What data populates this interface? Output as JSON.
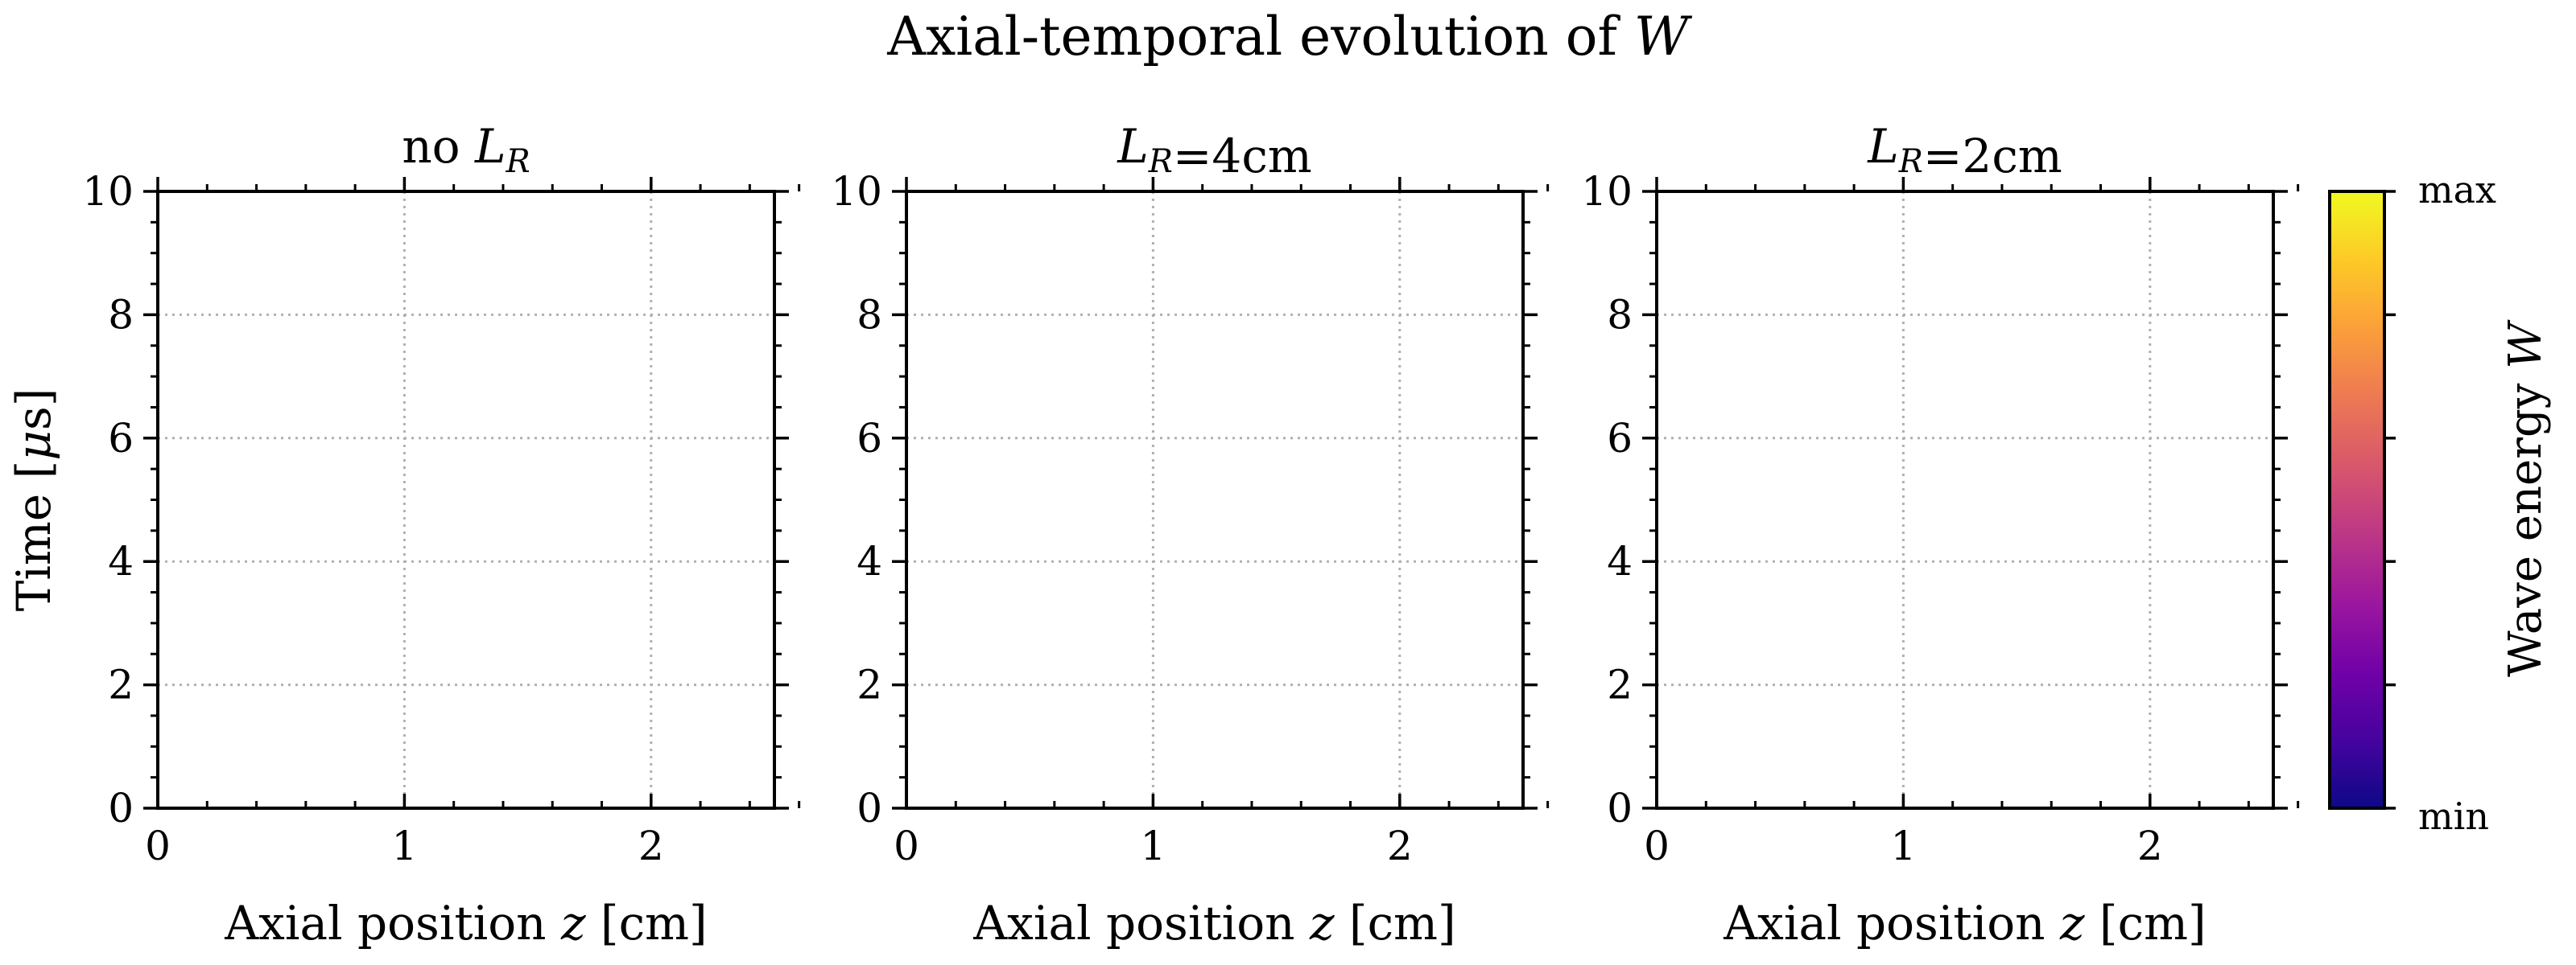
{
  "chart_data": {
    "type": "heatmap",
    "title": "Axial-temporal evolution of ",
    "title_symbol": "W",
    "colormap": "plasma",
    "panels": [
      {
        "title_parts": [
          {
            "text": "no ",
            "italic": false
          },
          {
            "text": "L",
            "italic": true,
            "sub": "R"
          }
        ],
        "title_text": "no L_R",
        "xlabel_prefix": "Axial position ",
        "xlabel_symbol": "z",
        "xlabel_suffix": " [cm]",
        "ylabel_prefix": "Time [",
        "ylabel_symbol": "μ",
        "ylabel_suffix": "s]",
        "xlim": [
          0,
          2.5
        ],
        "ylim": [
          0,
          10
        ],
        "xticks": [
          0,
          1,
          2
        ],
        "yticks": [
          0,
          2,
          4,
          6,
          8,
          10
        ],
        "grid": true,
        "z": []
      },
      {
        "title_parts": [
          {
            "text": "L",
            "italic": true,
            "sub": "R"
          },
          {
            "text": "=4cm",
            "italic": false
          }
        ],
        "title_text": "L_R=4cm",
        "xlabel_prefix": "Axial position ",
        "xlabel_symbol": "z",
        "xlabel_suffix": " [cm]",
        "xlim": [
          0,
          2.5
        ],
        "ylim": [
          0,
          10
        ],
        "xticks": [
          0,
          1,
          2
        ],
        "yticks": [
          0,
          2,
          4,
          6,
          8,
          10
        ],
        "grid": true,
        "z": []
      },
      {
        "title_parts": [
          {
            "text": "L",
            "italic": true,
            "sub": "R"
          },
          {
            "text": "=2cm",
            "italic": false
          }
        ],
        "title_text": "L_R=2cm",
        "xlabel_prefix": "Axial position ",
        "xlabel_symbol": "z",
        "xlabel_suffix": " [cm]",
        "xlim": [
          0,
          2.5
        ],
        "ylim": [
          0,
          10
        ],
        "xticks": [
          0,
          1,
          2
        ],
        "yticks": [
          0,
          2,
          4,
          6,
          8,
          10
        ],
        "grid": true,
        "z": []
      }
    ],
    "colorbar": {
      "label_prefix": "Wave energy ",
      "label_symbol": "W",
      "max_label": "max",
      "min_label": "min",
      "stops": [
        "#0d0887",
        "#46039f",
        "#7201a8",
        "#9c179e",
        "#bd3786",
        "#d8576b",
        "#ed7953",
        "#fb9f3a",
        "#fdca26",
        "#f0f921"
      ]
    }
  }
}
